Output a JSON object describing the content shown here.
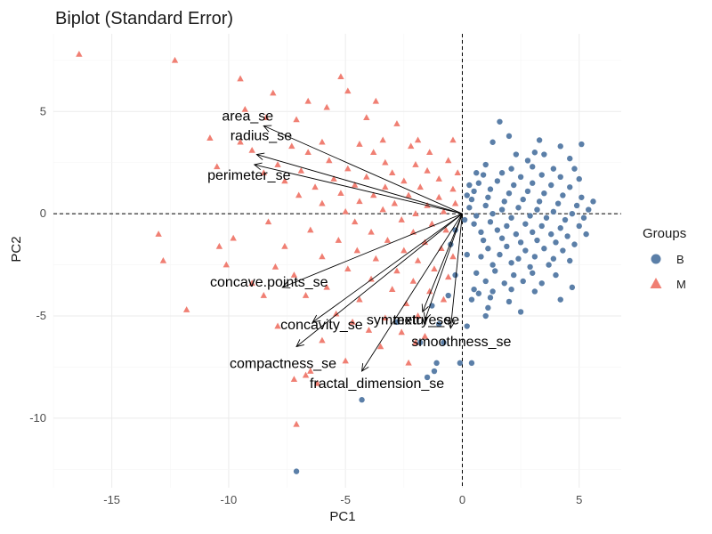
{
  "chart_data": {
    "type": "scatter",
    "title": "Biplot (Standard Error)",
    "xlabel": "PC1",
    "ylabel": "PC2",
    "xlim": [
      -17.5,
      6.8
    ],
    "ylim": [
      -13.4,
      8.8
    ],
    "xticks": [
      -15,
      -10,
      -5,
      0,
      5
    ],
    "yticks": [
      -10,
      -5,
      0,
      5
    ],
    "grid": true,
    "zero_lines": true,
    "legend": {
      "title": "Groups",
      "position": "right",
      "entries": [
        "B",
        "M"
      ]
    },
    "colors": {
      "B": "#5b7fa8",
      "M": "#f07f73"
    },
    "loadings": [
      {
        "label": "area_se",
        "x": -8.5,
        "y": 4.3
      },
      {
        "label": "radius_se",
        "x": -8.8,
        "y": 2.9
      },
      {
        "label": "perimeter_se",
        "x": -8.9,
        "y": 2.4
      },
      {
        "label": "concave.points_se",
        "x": -7.7,
        "y": -3.6
      },
      {
        "label": "concavity_se",
        "x": -6.4,
        "y": -5.3
      },
      {
        "label": "compactness_se",
        "x": -7.1,
        "y": -6.5
      },
      {
        "label": "fractal_dimension_se",
        "x": -4.3,
        "y": -7.7
      },
      {
        "label": "texture_se",
        "x": -1.7,
        "y": -4.8
      },
      {
        "label": "symmetry_se",
        "x": -1.6,
        "y": -5.2
      },
      {
        "label": "smoothness_se",
        "x": -0.5,
        "y": -5.6
      }
    ],
    "series": [
      {
        "name": "B",
        "points": [
          [
            1.6,
            4.5
          ],
          [
            4.2,
            3.3
          ],
          [
            5.1,
            3.4
          ],
          [
            2.3,
            2.9
          ],
          [
            3.1,
            3.0
          ],
          [
            3.5,
            2.9
          ],
          [
            2.8,
            2.6
          ],
          [
            4.6,
            2.7
          ],
          [
            1.0,
            2.4
          ],
          [
            2.1,
            2.2
          ],
          [
            3.0,
            2.3
          ],
          [
            3.9,
            2.2
          ],
          [
            4.8,
            2.2
          ],
          [
            0.9,
            1.9
          ],
          [
            1.7,
            2.0
          ],
          [
            2.5,
            1.8
          ],
          [
            3.4,
            1.9
          ],
          [
            4.2,
            1.8
          ],
          [
            5.0,
            1.7
          ],
          [
            0.7,
            1.5
          ],
          [
            1.5,
            1.6
          ],
          [
            2.2,
            1.4
          ],
          [
            3.0,
            1.5
          ],
          [
            3.8,
            1.4
          ],
          [
            4.6,
            1.3
          ],
          [
            0.5,
            1.1
          ],
          [
            1.2,
            1.2
          ],
          [
            2.0,
            1.0
          ],
          [
            2.8,
            1.1
          ],
          [
            3.5,
            1.0
          ],
          [
            4.3,
            0.9
          ],
          [
            5.1,
            0.8
          ],
          [
            0.4,
            0.7
          ],
          [
            1.1,
            0.8
          ],
          [
            1.8,
            0.6
          ],
          [
            2.6,
            0.7
          ],
          [
            3.3,
            0.6
          ],
          [
            4.1,
            0.5
          ],
          [
            4.9,
            0.4
          ],
          [
            5.6,
            0.6
          ],
          [
            0.3,
            0.3
          ],
          [
            1.0,
            0.4
          ],
          [
            1.7,
            0.2
          ],
          [
            2.4,
            0.3
          ],
          [
            3.2,
            0.2
          ],
          [
            3.9,
            0.1
          ],
          [
            4.7,
            0.0
          ],
          [
            5.4,
            0.2
          ],
          [
            0.6,
            -0.1
          ],
          [
            1.3,
            0.0
          ],
          [
            2.1,
            -0.2
          ],
          [
            2.9,
            -0.1
          ],
          [
            3.6,
            -0.2
          ],
          [
            4.4,
            -0.3
          ],
          [
            5.2,
            -0.2
          ],
          [
            0.5,
            -0.5
          ],
          [
            1.2,
            -0.4
          ],
          [
            1.9,
            -0.6
          ],
          [
            2.7,
            -0.5
          ],
          [
            3.4,
            -0.6
          ],
          [
            4.2,
            -0.7
          ],
          [
            5.0,
            -0.6
          ],
          [
            0.8,
            -0.9
          ],
          [
            1.5,
            -0.8
          ],
          [
            2.3,
            -1.0
          ],
          [
            3.0,
            -0.9
          ],
          [
            3.8,
            -1.0
          ],
          [
            4.5,
            -1.1
          ],
          [
            5.3,
            -1.0
          ],
          [
            0.9,
            -1.3
          ],
          [
            1.7,
            -1.2
          ],
          [
            2.5,
            -1.4
          ],
          [
            3.2,
            -1.3
          ],
          [
            4.0,
            -1.4
          ],
          [
            4.8,
            -1.5
          ],
          [
            1.1,
            -1.7
          ],
          [
            1.9,
            -1.6
          ],
          [
            2.7,
            -1.8
          ],
          [
            3.5,
            -1.7
          ],
          [
            4.3,
            -1.8
          ],
          [
            0.8,
            -2.1
          ],
          [
            1.6,
            -2.0
          ],
          [
            2.4,
            -2.2
          ],
          [
            3.1,
            -2.1
          ],
          [
            3.9,
            -2.2
          ],
          [
            4.6,
            -2.3
          ],
          [
            1.3,
            -2.5
          ],
          [
            2.1,
            -2.4
          ],
          [
            2.9,
            -2.6
          ],
          [
            3.7,
            -2.5
          ],
          [
            0.6,
            -2.9
          ],
          [
            1.4,
            -2.8
          ],
          [
            2.2,
            -3.0
          ],
          [
            3.0,
            -2.9
          ],
          [
            4.0,
            -3.0
          ],
          [
            1.0,
            -3.3
          ],
          [
            1.8,
            -3.4
          ],
          [
            2.6,
            -3.3
          ],
          [
            3.4,
            -3.4
          ],
          [
            0.5,
            -3.7
          ],
          [
            1.3,
            -3.8
          ],
          [
            2.1,
            -3.7
          ],
          [
            0.4,
            -4.2
          ],
          [
            1.2,
            -4.1
          ],
          [
            2.0,
            -4.3
          ],
          [
            4.7,
            -3.6
          ],
          [
            4.2,
            -4.2
          ],
          [
            1.1,
            -4.6
          ],
          [
            0.2,
            -5.5
          ],
          [
            -0.3,
            -3.0
          ],
          [
            -0.6,
            -4.0
          ],
          [
            -1.3,
            -4.5
          ],
          [
            -1.0,
            -5.4
          ],
          [
            -0.8,
            -6.3
          ],
          [
            -1.8,
            -6.3
          ],
          [
            -2.8,
            -5.3
          ],
          [
            -1.1,
            -7.3
          ],
          [
            -1.2,
            -7.7
          ],
          [
            -1.5,
            -8.0
          ],
          [
            -0.1,
            -7.3
          ],
          [
            0.4,
            -7.3
          ],
          [
            -4.3,
            -9.1
          ],
          [
            -7.1,
            -12.6
          ],
          [
            -0.5,
            -1.5
          ],
          [
            -0.3,
            -0.8
          ],
          [
            0.1,
            -0.3
          ],
          [
            0.2,
            0.9
          ],
          [
            0.3,
            1.4
          ],
          [
            0.6,
            2.0
          ],
          [
            1.3,
            3.5
          ],
          [
            2.0,
            3.8
          ],
          [
            3.3,
            3.6
          ],
          [
            0.2,
            -2.0
          ],
          [
            1.0,
            -5.0
          ],
          [
            2.5,
            -4.8
          ],
          [
            0.7,
            -3.9
          ],
          [
            3.1,
            -3.8
          ]
        ]
      },
      {
        "name": "M",
        "points": [
          [
            -16.4,
            7.8
          ],
          [
            -12.3,
            7.5
          ],
          [
            -5.2,
            6.7
          ],
          [
            -9.5,
            6.6
          ],
          [
            -4.9,
            6.0
          ],
          [
            -8.1,
            5.9
          ],
          [
            -6.6,
            5.5
          ],
          [
            -3.7,
            5.5
          ],
          [
            -9.3,
            5.1
          ],
          [
            -5.8,
            5.2
          ],
          [
            -8.4,
            4.7
          ],
          [
            -4.1,
            4.7
          ],
          [
            -7.1,
            4.6
          ],
          [
            -2.8,
            4.4
          ],
          [
            -10.8,
            3.7
          ],
          [
            -9.5,
            3.5
          ],
          [
            -6.0,
            3.5
          ],
          [
            -3.4,
            3.6
          ],
          [
            -1.9,
            3.6
          ],
          [
            -7.3,
            3.3
          ],
          [
            -4.4,
            3.4
          ],
          [
            -2.2,
            3.3
          ],
          [
            -0.4,
            3.6
          ],
          [
            -9.0,
            3.1
          ],
          [
            -6.6,
            3.0
          ],
          [
            -3.8,
            3.0
          ],
          [
            -1.4,
            3.0
          ],
          [
            -10.5,
            2.3
          ],
          [
            -7.9,
            2.4
          ],
          [
            -5.7,
            2.6
          ],
          [
            -3.3,
            2.5
          ],
          [
            -2.0,
            2.4
          ],
          [
            -0.6,
            2.6
          ],
          [
            -8.5,
            2.0
          ],
          [
            -6.9,
            2.1
          ],
          [
            -4.9,
            2.2
          ],
          [
            -3.0,
            2.0
          ],
          [
            -1.5,
            2.1
          ],
          [
            -0.2,
            2.0
          ],
          [
            -7.6,
            1.6
          ],
          [
            -5.5,
            1.7
          ],
          [
            -4.1,
            1.8
          ],
          [
            -2.5,
            1.6
          ],
          [
            -1.0,
            1.7
          ],
          [
            -6.3,
            1.3
          ],
          [
            -4.6,
            1.4
          ],
          [
            -3.3,
            1.3
          ],
          [
            -1.8,
            1.3
          ],
          [
            -0.4,
            1.2
          ],
          [
            -7.0,
            0.9
          ],
          [
            -5.2,
            1.0
          ],
          [
            -3.8,
            0.9
          ],
          [
            -2.3,
            0.9
          ],
          [
            -1.0,
            0.8
          ],
          [
            -6.0,
            0.5
          ],
          [
            -4.4,
            0.6
          ],
          [
            -2.9,
            0.5
          ],
          [
            -1.5,
            0.4
          ],
          [
            -0.3,
            0.5
          ],
          [
            -5.0,
            0.1
          ],
          [
            -3.4,
            0.2
          ],
          [
            -2.0,
            0.0
          ],
          [
            -0.8,
            0.1
          ],
          [
            -8.3,
            -0.4
          ],
          [
            -4.6,
            -0.4
          ],
          [
            -2.6,
            -0.3
          ],
          [
            -1.3,
            -0.5
          ],
          [
            -6.5,
            -0.8
          ],
          [
            -3.9,
            -0.9
          ],
          [
            -2.1,
            -0.9
          ],
          [
            -0.7,
            -0.8
          ],
          [
            -9.8,
            -1.2
          ],
          [
            -5.3,
            -1.3
          ],
          [
            -3.2,
            -1.3
          ],
          [
            -1.6,
            -1.4
          ],
          [
            -7.6,
            -1.6
          ],
          [
            -4.5,
            -1.8
          ],
          [
            -2.5,
            -1.8
          ],
          [
            -0.9,
            -1.7
          ],
          [
            -13.0,
            -1.0
          ],
          [
            -10.4,
            -1.6
          ],
          [
            -6.0,
            -2.1
          ],
          [
            -3.7,
            -2.2
          ],
          [
            -1.9,
            -2.3
          ],
          [
            -0.4,
            -2.1
          ],
          [
            -10.1,
            -2.5
          ],
          [
            -8.0,
            -2.6
          ],
          [
            -4.9,
            -2.7
          ],
          [
            -2.8,
            -2.8
          ],
          [
            -1.2,
            -2.7
          ],
          [
            -12.8,
            -2.3
          ],
          [
            -7.2,
            -3.0
          ],
          [
            -3.9,
            -3.2
          ],
          [
            -2.1,
            -3.3
          ],
          [
            -0.6,
            -3.1
          ],
          [
            -9.0,
            -3.4
          ],
          [
            -5.8,
            -3.6
          ],
          [
            -3.0,
            -3.7
          ],
          [
            -1.4,
            -3.8
          ],
          [
            -6.7,
            -4.0
          ],
          [
            -4.4,
            -4.2
          ],
          [
            -2.4,
            -4.4
          ],
          [
            -0.8,
            -4.2
          ],
          [
            -11.8,
            -4.7
          ],
          [
            -5.4,
            -4.9
          ],
          [
            -3.3,
            -5.1
          ],
          [
            -1.9,
            -5.0
          ],
          [
            -7.9,
            -5.5
          ],
          [
            -4.0,
            -5.7
          ],
          [
            -2.6,
            -5.8
          ],
          [
            -6.0,
            -6.2
          ],
          [
            -3.5,
            -6.5
          ],
          [
            -5.0,
            -7.2
          ],
          [
            -6.5,
            -7.7
          ],
          [
            -2.3,
            -7.3
          ],
          [
            -6.7,
            -7.9
          ],
          [
            -6.2,
            -8.3
          ],
          [
            -7.2,
            -8.1
          ],
          [
            -7.1,
            -10.3
          ],
          [
            -2.0,
            -6.3
          ],
          [
            -1.6,
            -6.0
          ],
          [
            -4.7,
            -5.3
          ],
          [
            -8.5,
            -4.0
          ]
        ]
      }
    ]
  }
}
